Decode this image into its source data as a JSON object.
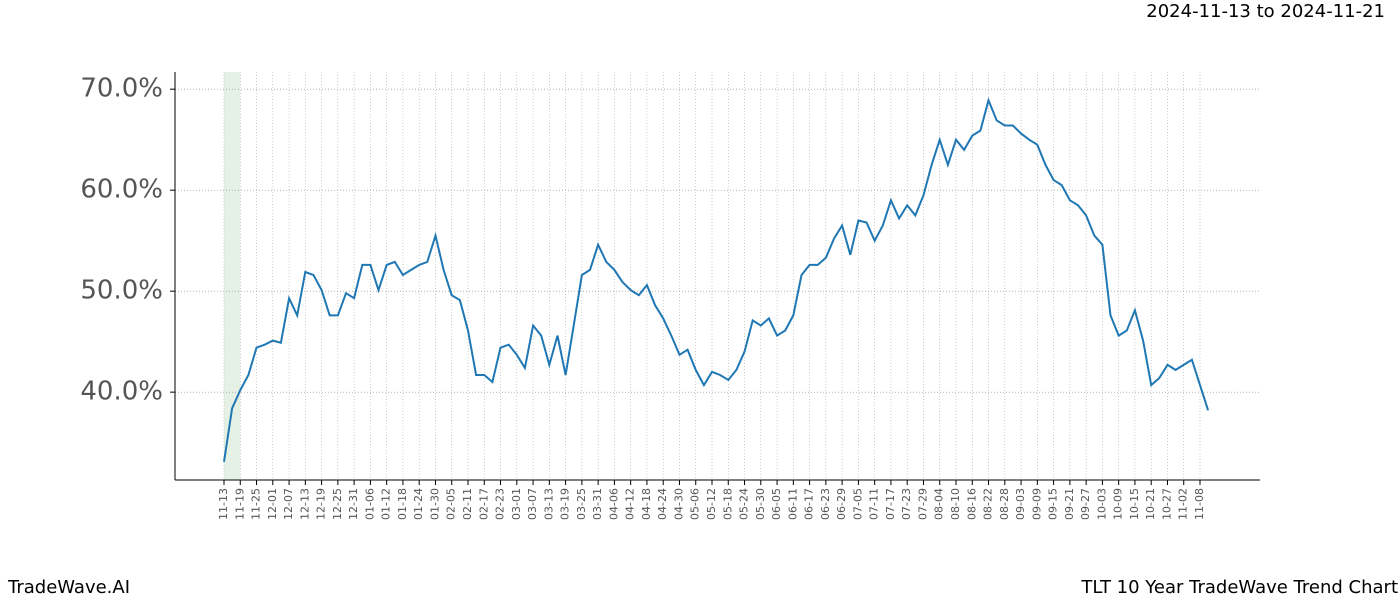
{
  "header": {
    "date_range": "2024-11-13 to 2024-11-21"
  },
  "footer": {
    "brand": "TradeWave.AI",
    "chart_name": "TLT 10 Year TradeWave Trend Chart"
  },
  "chart_data": {
    "type": "line",
    "categories": [
      "11-13",
      null,
      "11-19",
      null,
      "11-25",
      null,
      "12-01",
      null,
      "12-07",
      null,
      "12-13",
      null,
      "12-19",
      null,
      "12-25",
      null,
      "12-31",
      null,
      "01-06",
      null,
      "01-12",
      null,
      "01-18",
      null,
      "01-24",
      null,
      "01-30",
      null,
      "02-05",
      null,
      "02-11",
      null,
      "02-17",
      null,
      "02-23",
      null,
      "03-01",
      null,
      "03-07",
      null,
      "03-13",
      null,
      "03-19",
      null,
      "03-25",
      null,
      "03-31",
      null,
      "04-06",
      null,
      "04-12",
      null,
      "04-18",
      null,
      "04-24",
      null,
      "04-30",
      null,
      "05-06",
      null,
      "05-12",
      null,
      "05-18",
      null,
      "05-24",
      null,
      "05-30",
      null,
      "06-05",
      null,
      "06-11",
      null,
      "06-17",
      null,
      "06-23",
      null,
      "06-29",
      null,
      "07-05",
      null,
      "07-11",
      null,
      "07-17",
      null,
      "07-23",
      null,
      "07-29",
      null,
      "08-04",
      null,
      "08-10",
      null,
      "08-16",
      null,
      "08-22",
      null,
      "08-28",
      null,
      "09-03",
      null,
      "09-09",
      null,
      "09-15",
      null,
      "09-21",
      null,
      "09-27",
      null,
      "10-03",
      null,
      "10-09",
      null,
      "10-15",
      null,
      "10-21",
      null,
      "10-27",
      null,
      "11-02",
      null,
      "11-08",
      null
    ],
    "series": [
      {
        "color": "#1f77b4",
        "values": [
          33.1,
          38.4,
          40.2,
          41.7,
          44.4,
          44.7,
          45.1,
          44.9,
          49.3,
          47.6,
          51.9,
          51.6,
          50.1,
          47.6,
          47.6,
          49.8,
          49.3,
          52.6,
          52.6,
          50.1,
          52.6,
          52.9,
          51.6,
          52.1,
          52.6,
          52.9,
          55.5,
          52.1,
          49.6,
          49.1,
          46.1,
          41.7,
          41.7,
          41.0,
          44.4,
          44.7,
          43.7,
          42.4,
          46.6,
          45.6,
          42.7,
          45.6,
          41.7,
          46.6,
          51.6,
          52.1,
          54.6,
          52.9,
          52.1,
          50.9,
          50.1,
          49.6,
          50.6,
          48.6,
          47.3,
          45.6,
          43.7,
          44.2,
          42.2,
          40.7,
          42.0,
          41.7,
          41.2,
          42.2,
          44.0,
          47.1,
          46.6,
          47.3,
          45.6,
          46.1,
          47.6,
          51.6,
          52.6,
          52.6,
          53.3,
          55.2,
          56.5,
          53.6,
          57.0,
          56.8,
          55.0,
          56.5,
          59.0,
          57.2,
          58.5,
          57.5,
          59.5,
          62.5,
          65.0,
          62.5,
          65.0,
          64.0,
          65.4,
          65.9,
          68.9,
          66.9,
          66.4,
          66.4,
          65.6,
          65.0,
          64.5,
          62.5,
          61.0,
          60.5,
          59.0,
          58.5,
          57.5,
          55.5,
          54.6,
          47.6,
          45.6,
          46.1,
          48.1,
          45.1,
          40.7,
          41.4,
          42.7,
          42.2,
          42.7,
          43.2,
          40.7,
          38.2
        ]
      }
    ],
    "ylim": [
      31.3,
      71.7
    ],
    "yticks": [
      {
        "value": 40,
        "label": "40.0%"
      },
      {
        "value": 50,
        "label": "50.0%"
      },
      {
        "value": 60,
        "label": "60.0%"
      },
      {
        "value": 70,
        "label": "70.0%"
      }
    ],
    "highlight_range": [
      "11-13",
      "11-19"
    ],
    "highlight_color": "#d5e8d4",
    "grid": true
  }
}
